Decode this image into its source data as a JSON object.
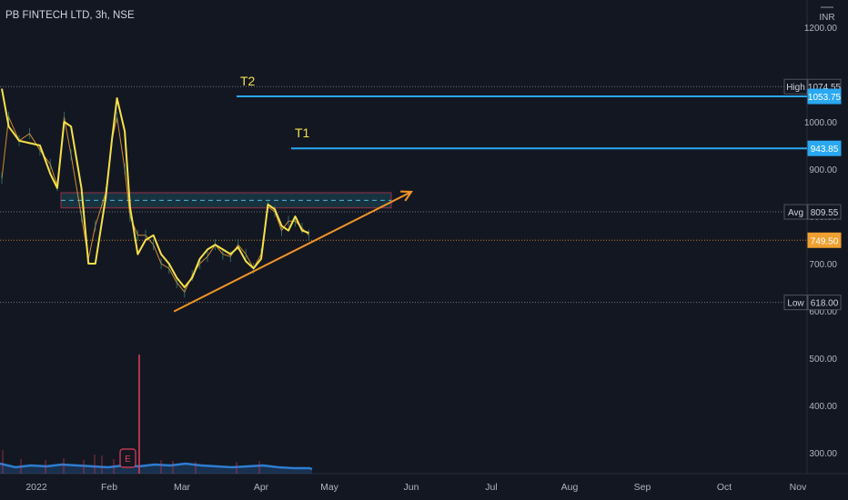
{
  "header": {
    "symbol_label": "PB FINTECH LTD, 3h, NSE"
  },
  "currency": "INR",
  "colors": {
    "background": "#131722",
    "axis_text": "#b2b5be",
    "price_line": "#f0a030",
    "oscillator": "#f5e14a",
    "target_line": "#2aa8f2",
    "zone_border": "#e0405a",
    "zone_fill": "#1d4a5a",
    "trend_arrow": "#f39426",
    "volume_area": "#2d7dd2",
    "volume_bar": "#e0405a"
  },
  "chart_data": {
    "type": "line",
    "title": "PB FINTECH LTD, 3h, NSE",
    "ylim": [
      260,
      1210
    ],
    "x_ticks": [
      "2022",
      "Feb",
      "Mar",
      "Apr",
      "May",
      "Jun",
      "Jul",
      "Aug",
      "Sep",
      "Oct",
      "Nov"
    ],
    "y_ticks": [
      "300.00",
      "400.00",
      "500.00",
      "600.00",
      "700.00",
      "800.00",
      "900.00",
      "1000.00",
      "1200.00"
    ],
    "price_markers": [
      {
        "label": "High",
        "value": "1074.55",
        "style": "dark"
      },
      {
        "label": "",
        "value": "1053.75",
        "style": "blue"
      },
      {
        "label": "",
        "value": "943.85",
        "style": "blue"
      },
      {
        "label": "Avg",
        "value": "809.55",
        "style": "dark"
      },
      {
        "label": "",
        "value": "749.50",
        "style": "orange"
      },
      {
        "label": "Low",
        "value": "618.00",
        "style": "dark"
      }
    ],
    "target_lines": [
      {
        "name": "T2",
        "value": 1053.75
      },
      {
        "name": "T1",
        "value": 943.85
      }
    ],
    "zone": {
      "top": 850,
      "bottom": 818,
      "mid": 834
    },
    "dotted_levels": [
      1074.55,
      809.55,
      749.5,
      618
    ],
    "series": [
      {
        "name": "price",
        "points": [
          [
            "2022-01-01",
            880
          ],
          [
            "2022-01-03",
            1010
          ],
          [
            "2022-01-06",
            960
          ],
          [
            "2022-01-09",
            975
          ],
          [
            "2022-01-12",
            940
          ],
          [
            "2022-01-15",
            910
          ],
          [
            "2022-01-17",
            865
          ],
          [
            "2022-01-19",
            1010
          ],
          [
            "2022-01-21",
            930
          ],
          [
            "2022-01-24",
            800
          ],
          [
            "2022-01-26",
            710
          ],
          [
            "2022-01-28",
            780
          ],
          [
            "2022-01-31",
            850
          ],
          [
            "2022-02-02",
            960
          ],
          [
            "2022-02-04",
            1010
          ],
          [
            "2022-02-07",
            900
          ],
          [
            "2022-02-09",
            800
          ],
          [
            "2022-02-12",
            760
          ],
          [
            "2022-02-15",
            760
          ],
          [
            "2022-02-18",
            740
          ],
          [
            "2022-02-21",
            700
          ],
          [
            "2022-02-24",
            690
          ],
          [
            "2022-02-27",
            660
          ],
          [
            "2022-03-02",
            640
          ],
          [
            "2022-03-05",
            675
          ],
          [
            "2022-03-08",
            700
          ],
          [
            "2022-03-11",
            715
          ],
          [
            "2022-03-14",
            740
          ],
          [
            "2022-03-17",
            720
          ],
          [
            "2022-03-20",
            715
          ],
          [
            "2022-03-23",
            740
          ],
          [
            "2022-03-26",
            720
          ],
          [
            "2022-03-29",
            690
          ],
          [
            "2022-04-01",
            720
          ],
          [
            "2022-04-04",
            820
          ],
          [
            "2022-04-07",
            810
          ],
          [
            "2022-04-10",
            770
          ],
          [
            "2022-04-13",
            790
          ],
          [
            "2022-04-16",
            790
          ],
          [
            "2022-04-19",
            775
          ],
          [
            "2022-04-22",
            760
          ]
        ]
      },
      {
        "name": "oscillator",
        "points": [
          [
            "2022-01-01",
            1070
          ],
          [
            "2022-01-03",
            990
          ],
          [
            "2022-01-06",
            960
          ],
          [
            "2022-01-09",
            955
          ],
          [
            "2022-01-12",
            950
          ],
          [
            "2022-01-15",
            890
          ],
          [
            "2022-01-17",
            860
          ],
          [
            "2022-01-19",
            1000
          ],
          [
            "2022-01-21",
            990
          ],
          [
            "2022-01-24",
            860
          ],
          [
            "2022-01-26",
            700
          ],
          [
            "2022-01-28",
            700
          ],
          [
            "2022-01-31",
            840
          ],
          [
            "2022-02-02",
            960
          ],
          [
            "2022-02-04",
            1050
          ],
          [
            "2022-02-07",
            980
          ],
          [
            "2022-02-09",
            820
          ],
          [
            "2022-02-12",
            720
          ],
          [
            "2022-02-15",
            750
          ],
          [
            "2022-02-18",
            760
          ],
          [
            "2022-02-21",
            720
          ],
          [
            "2022-02-24",
            700
          ],
          [
            "2022-02-27",
            670
          ],
          [
            "2022-03-02",
            650
          ],
          [
            "2022-03-05",
            670
          ],
          [
            "2022-03-08",
            710
          ],
          [
            "2022-03-11",
            730
          ],
          [
            "2022-03-14",
            740
          ],
          [
            "2022-03-17",
            730
          ],
          [
            "2022-03-20",
            720
          ],
          [
            "2022-03-23",
            735
          ],
          [
            "2022-03-26",
            705
          ],
          [
            "2022-03-29",
            690
          ],
          [
            "2022-04-01",
            710
          ],
          [
            "2022-04-04",
            825
          ],
          [
            "2022-04-07",
            815
          ],
          [
            "2022-04-10",
            780
          ],
          [
            "2022-04-13",
            770
          ],
          [
            "2022-04-16",
            800
          ],
          [
            "2022-04-19",
            770
          ],
          [
            "2022-04-22",
            765
          ]
        ]
      }
    ],
    "trend_arrow": {
      "from": [
        "2022-02-28",
        618
      ],
      "to": [
        "2022-05-31",
        825
      ]
    },
    "annotations": [
      "T2",
      "T1"
    ],
    "event_marker": "E",
    "grid": false
  }
}
